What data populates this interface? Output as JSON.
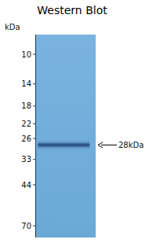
{
  "chart_data": {
    "type": "gel",
    "title": "Western Blot",
    "y_label": "kDa",
    "values": [
      28
    ],
    "value_labels": [
      "28kDa"
    ],
    "data_labels": true,
    "color": "#1f4073",
    "log": "y",
    "ylim": [
      80,
      8
    ],
    "yticks": [
      70,
      44,
      33,
      26,
      22,
      18,
      14,
      10
    ]
  }
}
